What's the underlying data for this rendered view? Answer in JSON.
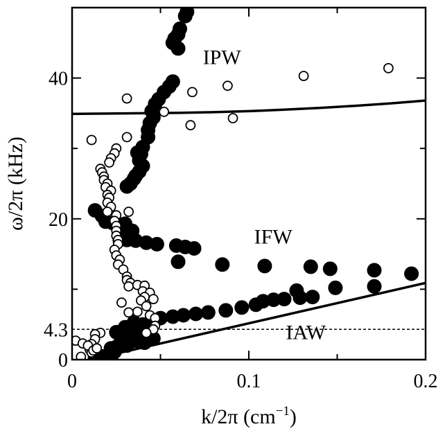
{
  "chart_data": {
    "type": "scatter",
    "title": "",
    "xlabel": "k/2π (cm",
    "xlabel_sup": "−1",
    "xlabel_close": ")",
    "ylabel": "ω/2π (kHz)",
    "xlim": [
      0,
      0.2
    ],
    "ylim": [
      0,
      50
    ],
    "xticks": [
      {
        "v": 0,
        "label": "0"
      },
      {
        "v": 0.1,
        "label": "0.1"
      },
      {
        "v": 0.2,
        "label": "0.2"
      }
    ],
    "yticks": [
      {
        "v": 0,
        "label": "0"
      },
      {
        "v": 4.3,
        "label": "4.3"
      },
      {
        "v": 20,
        "label": "20"
      },
      {
        "v": 40,
        "label": "40"
      }
    ],
    "minor_xticks": [
      0.05,
      0.15
    ],
    "minor_yticks": [
      10,
      30
    ],
    "annotations": [
      {
        "text": "IPW",
        "x": 0.074,
        "y": 42
      },
      {
        "text": "IFW",
        "x": 0.103,
        "y": 16.5
      },
      {
        "text": "IAW",
        "x": 0.121,
        "y": 2.9
      }
    ],
    "reference_line": {
      "style": "dashed",
      "y": 4.3
    },
    "series": [
      {
        "marker": "filled-circle",
        "points": [
          [
            0.065,
            49.4
          ],
          [
            0.064,
            48.8
          ],
          [
            0.061,
            47
          ],
          [
            0.06,
            46.2
          ],
          [
            0.058,
            45.6
          ],
          [
            0.057,
            45
          ],
          [
            0.06,
            44.2
          ],
          [
            0.057,
            39.5
          ],
          [
            0.055,
            38.8
          ],
          [
            0.052,
            38
          ],
          [
            0.049,
            37
          ],
          [
            0.047,
            36.3
          ],
          [
            0.045,
            35.3
          ],
          [
            0.046,
            34.4
          ],
          [
            0.044,
            33.6
          ],
          [
            0.043,
            32.6
          ],
          [
            0.043,
            31.6
          ],
          [
            0.04,
            30.2
          ],
          [
            0.039,
            29.2
          ],
          [
            0.037,
            29.4
          ],
          [
            0.038,
            28.3
          ],
          [
            0.04,
            27.5
          ],
          [
            0.038,
            26.7
          ],
          [
            0.036,
            26.1
          ],
          [
            0.035,
            25.7
          ],
          [
            0.033,
            25
          ],
          [
            0.031,
            24.6
          ],
          [
            0.013,
            21.2
          ],
          [
            0.017,
            20.4
          ],
          [
            0.019,
            19.6
          ],
          [
            0.023,
            19.4
          ],
          [
            0.03,
            19.3
          ],
          [
            0.034,
            18.3
          ],
          [
            0.029,
            18
          ],
          [
            0.032,
            17.6
          ],
          [
            0.027,
            17
          ],
          [
            0.031,
            17
          ],
          [
            0.036,
            16.9
          ],
          [
            0.042,
            16.6
          ],
          [
            0.048,
            16.4
          ],
          [
            0.059,
            16.2
          ],
          [
            0.064,
            16
          ],
          [
            0.069,
            15.8
          ],
          [
            0.06,
            13.9
          ],
          [
            0.085,
            13.5
          ],
          [
            0.109,
            13.3
          ],
          [
            0.135,
            13.2
          ],
          [
            0.146,
            12.9
          ],
          [
            0.171,
            12.7
          ],
          [
            0.192,
            12.2
          ],
          [
            0.171,
            10.4
          ],
          [
            0.149,
            10.2
          ],
          [
            0.127,
            9.8
          ],
          [
            0.136,
            8.9
          ],
          [
            0.129,
            8.8
          ],
          [
            0.12,
            8.6
          ],
          [
            0.114,
            8.5
          ],
          [
            0.108,
            8.3
          ],
          [
            0.104,
            7.8
          ],
          [
            0.096,
            7.4
          ],
          [
            0.087,
            7
          ],
          [
            0.077,
            6.7
          ],
          [
            0.07,
            6.5
          ],
          [
            0.063,
            6.3
          ],
          [
            0.057,
            6.1
          ],
          [
            0.05,
            5.9
          ],
          [
            0.045,
            5.6
          ],
          [
            0.043,
            5.1
          ],
          [
            0.04,
            5
          ],
          [
            0.035,
            5.3
          ],
          [
            0.03,
            4.6
          ],
          [
            0.034,
            4.2
          ],
          [
            0.03,
            4
          ],
          [
            0.027,
            3.7
          ],
          [
            0.025,
            3.9
          ],
          [
            0.027,
            3.5
          ],
          [
            0.031,
            3.5
          ],
          [
            0.036,
            3.3
          ],
          [
            0.04,
            3.1
          ],
          [
            0.046,
            3
          ],
          [
            0.028,
            2.8
          ],
          [
            0.032,
            2.9
          ],
          [
            0.035,
            2.7
          ],
          [
            0.038,
            2.6
          ],
          [
            0.041,
            2.4
          ],
          [
            0.031,
            2
          ],
          [
            0.027,
            1.9
          ],
          [
            0.025,
            1.8
          ],
          [
            0.022,
            1.6
          ],
          [
            0.024,
            1.1
          ],
          [
            0.02,
            0.6
          ],
          [
            0.022,
            0.3
          ],
          [
            0.02,
            0.1
          ],
          [
            0.016,
            0.5
          ],
          [
            0.013,
            0.3
          ],
          [
            0.017,
            0.1
          ]
        ]
      },
      {
        "marker": "open-circle",
        "points": [
          [
            0.179,
            41.4
          ],
          [
            0.131,
            40.3
          ],
          [
            0.088,
            38.9
          ],
          [
            0.068,
            38
          ],
          [
            0.031,
            37.1
          ],
          [
            0.052,
            35.2
          ],
          [
            0.067,
            33.3
          ],
          [
            0.091,
            34.3
          ],
          [
            0.031,
            31.6
          ],
          [
            0.011,
            31.2
          ],
          [
            0.025,
            30
          ],
          [
            0.024,
            29.3
          ],
          [
            0.022,
            28.6
          ],
          [
            0.021,
            28
          ],
          [
            0.016,
            27.1
          ],
          [
            0.017,
            26.6
          ],
          [
            0.018,
            26
          ],
          [
            0.018,
            25.5
          ],
          [
            0.02,
            25
          ],
          [
            0.019,
            24.5
          ],
          [
            0.022,
            24
          ],
          [
            0.02,
            23.4
          ],
          [
            0.021,
            23
          ],
          [
            0.02,
            22.3
          ],
          [
            0.022,
            21.7
          ],
          [
            0.02,
            21
          ],
          [
            0.032,
            21
          ],
          [
            0.025,
            20.5
          ],
          [
            0.024,
            19.7
          ],
          [
            0.025,
            19
          ],
          [
            0.025,
            18.3
          ],
          [
            0.025,
            17.6
          ],
          [
            0.026,
            17
          ],
          [
            0.026,
            16.4
          ],
          [
            0.024,
            15.6
          ],
          [
            0.025,
            14.8
          ],
          [
            0.027,
            14.2
          ],
          [
            0.026,
            13.5
          ],
          [
            0.029,
            12.8
          ],
          [
            0.031,
            11.8
          ],
          [
            0.031,
            11.3
          ],
          [
            0.033,
            10.9
          ],
          [
            0.032,
            10.4
          ],
          [
            0.037,
            10.6
          ],
          [
            0.041,
            10.5
          ],
          [
            0.04,
            9.7
          ],
          [
            0.044,
            9.5
          ],
          [
            0.041,
            8.9
          ],
          [
            0.046,
            8.6
          ],
          [
            0.039,
            8.4
          ],
          [
            0.028,
            8.1
          ],
          [
            0.042,
            7.6
          ],
          [
            0.037,
            6.8
          ],
          [
            0.032,
            6.7
          ],
          [
            0.044,
            6.3
          ],
          [
            0.047,
            5.9
          ],
          [
            0.047,
            4.8
          ],
          [
            0.046,
            4.3
          ],
          [
            0.042,
            3.8
          ],
          [
            0.016,
            3.8
          ],
          [
            0.013,
            3.6
          ],
          [
            0.013,
            2.9
          ],
          [
            0.011,
            2.2
          ],
          [
            0.01,
            1.4
          ],
          [
            0.005,
            0.4
          ],
          [
            0.011,
            1
          ],
          [
            0.002,
            2.7
          ],
          [
            0.006,
            2.3
          ],
          [
            0.009,
            2
          ],
          [
            0.012,
            1.3
          ],
          [
            0.014,
            1.6
          ]
        ]
      }
    ],
    "curves": [
      {
        "name": "",
        "x": [
          0,
          0.02,
          0.04,
          0.06,
          0.08,
          0.1,
          0.12,
          0.14,
          0.16,
          0.18,
          0.2
        ],
        "y": [
          34.9,
          34.95,
          35.0,
          35.05,
          35.15,
          35.3,
          35.5,
          35.75,
          36.05,
          36.4,
          36.8
        ]
      },
      {
        "name": "",
        "x": [
          0.01,
          0.2
        ],
        "y": [
          0,
          10.9
        ]
      }
    ]
  }
}
